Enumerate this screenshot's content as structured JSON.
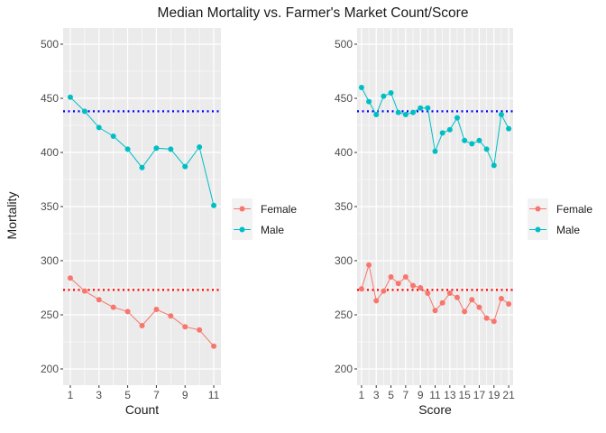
{
  "title": "Median Mortality vs. Farmer's Market Count/Score",
  "ylabel": "Mortality",
  "colors": {
    "female": "#F8766D",
    "male": "#00BFC4",
    "female_ref": "#FF0000",
    "male_ref": "#0000FF",
    "panel_bg": "#EBEBEB",
    "grid": "#FFFFFF"
  },
  "chart_data": [
    {
      "type": "line",
      "xlabel": "Count",
      "ylabel": "Mortality",
      "xlim": [
        0.5,
        11.5
      ],
      "ylim": [
        185,
        515
      ],
      "x": [
        1,
        2,
        3,
        4,
        5,
        6,
        7,
        8,
        9,
        10,
        11
      ],
      "x_ticks": [
        "1",
        "3",
        "5",
        "7",
        "9",
        "11"
      ],
      "y_ticks": [
        "200",
        "250",
        "300",
        "350",
        "400",
        "450",
        "500"
      ],
      "series": [
        {
          "name": "Female",
          "values": [
            284,
            272,
            264,
            257,
            253,
            240,
            255,
            249,
            239,
            236,
            221
          ]
        },
        {
          "name": "Male",
          "values": [
            451,
            438,
            423,
            415,
            403,
            386,
            404,
            403,
            387,
            405,
            351
          ]
        }
      ],
      "reference_lines": [
        {
          "series": "Female",
          "y": 273,
          "style": "dotted"
        },
        {
          "series": "Male",
          "y": 438,
          "style": "dotted"
        }
      ],
      "legend": {
        "position": "right",
        "entries": [
          "Female",
          "Male"
        ]
      },
      "grid": true
    },
    {
      "type": "line",
      "xlabel": "Score",
      "ylabel": "Mortality",
      "xlim": [
        0.4,
        21.6
      ],
      "ylim": [
        185,
        515
      ],
      "x": [
        1,
        2,
        3,
        4,
        5,
        6,
        7,
        8,
        9,
        10,
        11,
        12,
        13,
        14,
        15,
        16,
        17,
        18,
        19,
        20,
        21
      ],
      "x_ticks": [
        "1",
        "3",
        "5",
        "7",
        "9",
        "11",
        "13",
        "15",
        "17",
        "19",
        "21"
      ],
      "y_ticks": [
        "200",
        "250",
        "300",
        "350",
        "400",
        "450",
        "500"
      ],
      "series": [
        {
          "name": "Female",
          "values": [
            274,
            296,
            263,
            272,
            285,
            279,
            285,
            277,
            275,
            270,
            254,
            261,
            270,
            266,
            253,
            264,
            257,
            247,
            244,
            265,
            260
          ]
        },
        {
          "name": "Male",
          "values": [
            460,
            447,
            435,
            452,
            455,
            437,
            435,
            437,
            441,
            441,
            401,
            418,
            421,
            432,
            411,
            408,
            411,
            403,
            388,
            435,
            422
          ]
        }
      ],
      "reference_lines": [
        {
          "series": "Female",
          "y": 273,
          "style": "dotted"
        },
        {
          "series": "Male",
          "y": 438,
          "style": "dotted"
        }
      ],
      "legend": {
        "position": "right",
        "entries": [
          "Female",
          "Male"
        ]
      },
      "grid": true
    }
  ]
}
